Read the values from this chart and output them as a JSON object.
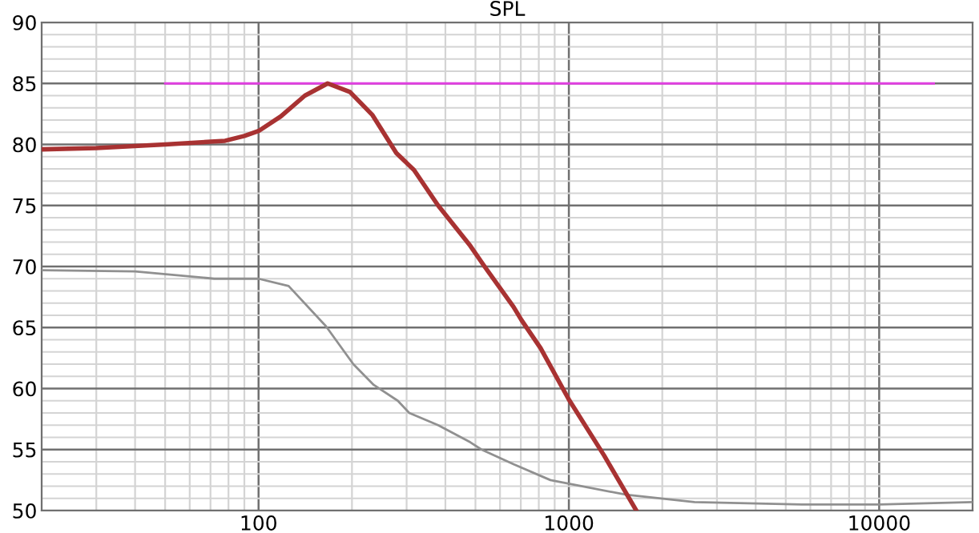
{
  "chart_data": {
    "type": "line",
    "title": "SPL",
    "log": "x",
    "grid": true,
    "xlim": [
      20,
      20000
    ],
    "xticks": [
      100,
      1000,
      10000
    ],
    "ylim": [
      50,
      90
    ],
    "yticks": [
      50,
      55,
      60,
      65,
      70,
      75,
      80,
      85,
      90
    ],
    "series": [
      {
        "color": "#e040e0",
        "x": [
          50,
          15000
        ],
        "values": [
          85,
          85
        ]
      },
      {
        "color": "#909090",
        "x": [
          20,
          40,
          72,
          100,
          125,
          165,
          202,
          235,
          281,
          306,
          379,
          481,
          523,
          663,
          872,
          1000,
          1530,
          2540,
          5640,
          10000,
          20000
        ],
        "values": [
          69.7,
          69.6,
          69.0,
          69.0,
          68.4,
          65.1,
          62.0,
          60.3,
          59.0,
          58.0,
          57.0,
          55.6,
          55.0,
          53.8,
          52.5,
          52.2,
          51.3,
          50.7,
          50.5,
          50.5,
          50.7
        ]
      },
      {
        "color": "#a83232",
        "x": [
          20,
          30,
          50,
          78,
          90,
          100,
          118,
          141,
          167,
          197,
          233,
          278,
          317,
          379,
          481,
          535,
          663,
          704,
          811,
          1000,
          1300,
          1650
        ],
        "values": [
          79.6,
          79.7,
          80.0,
          80.3,
          80.7,
          81.1,
          82.3,
          84.0,
          85.0,
          84.3,
          82.4,
          79.3,
          77.9,
          75.0,
          71.7,
          70.0,
          66.7,
          65.6,
          63.3,
          59.1,
          54.5,
          50.0
        ]
      }
    ]
  }
}
